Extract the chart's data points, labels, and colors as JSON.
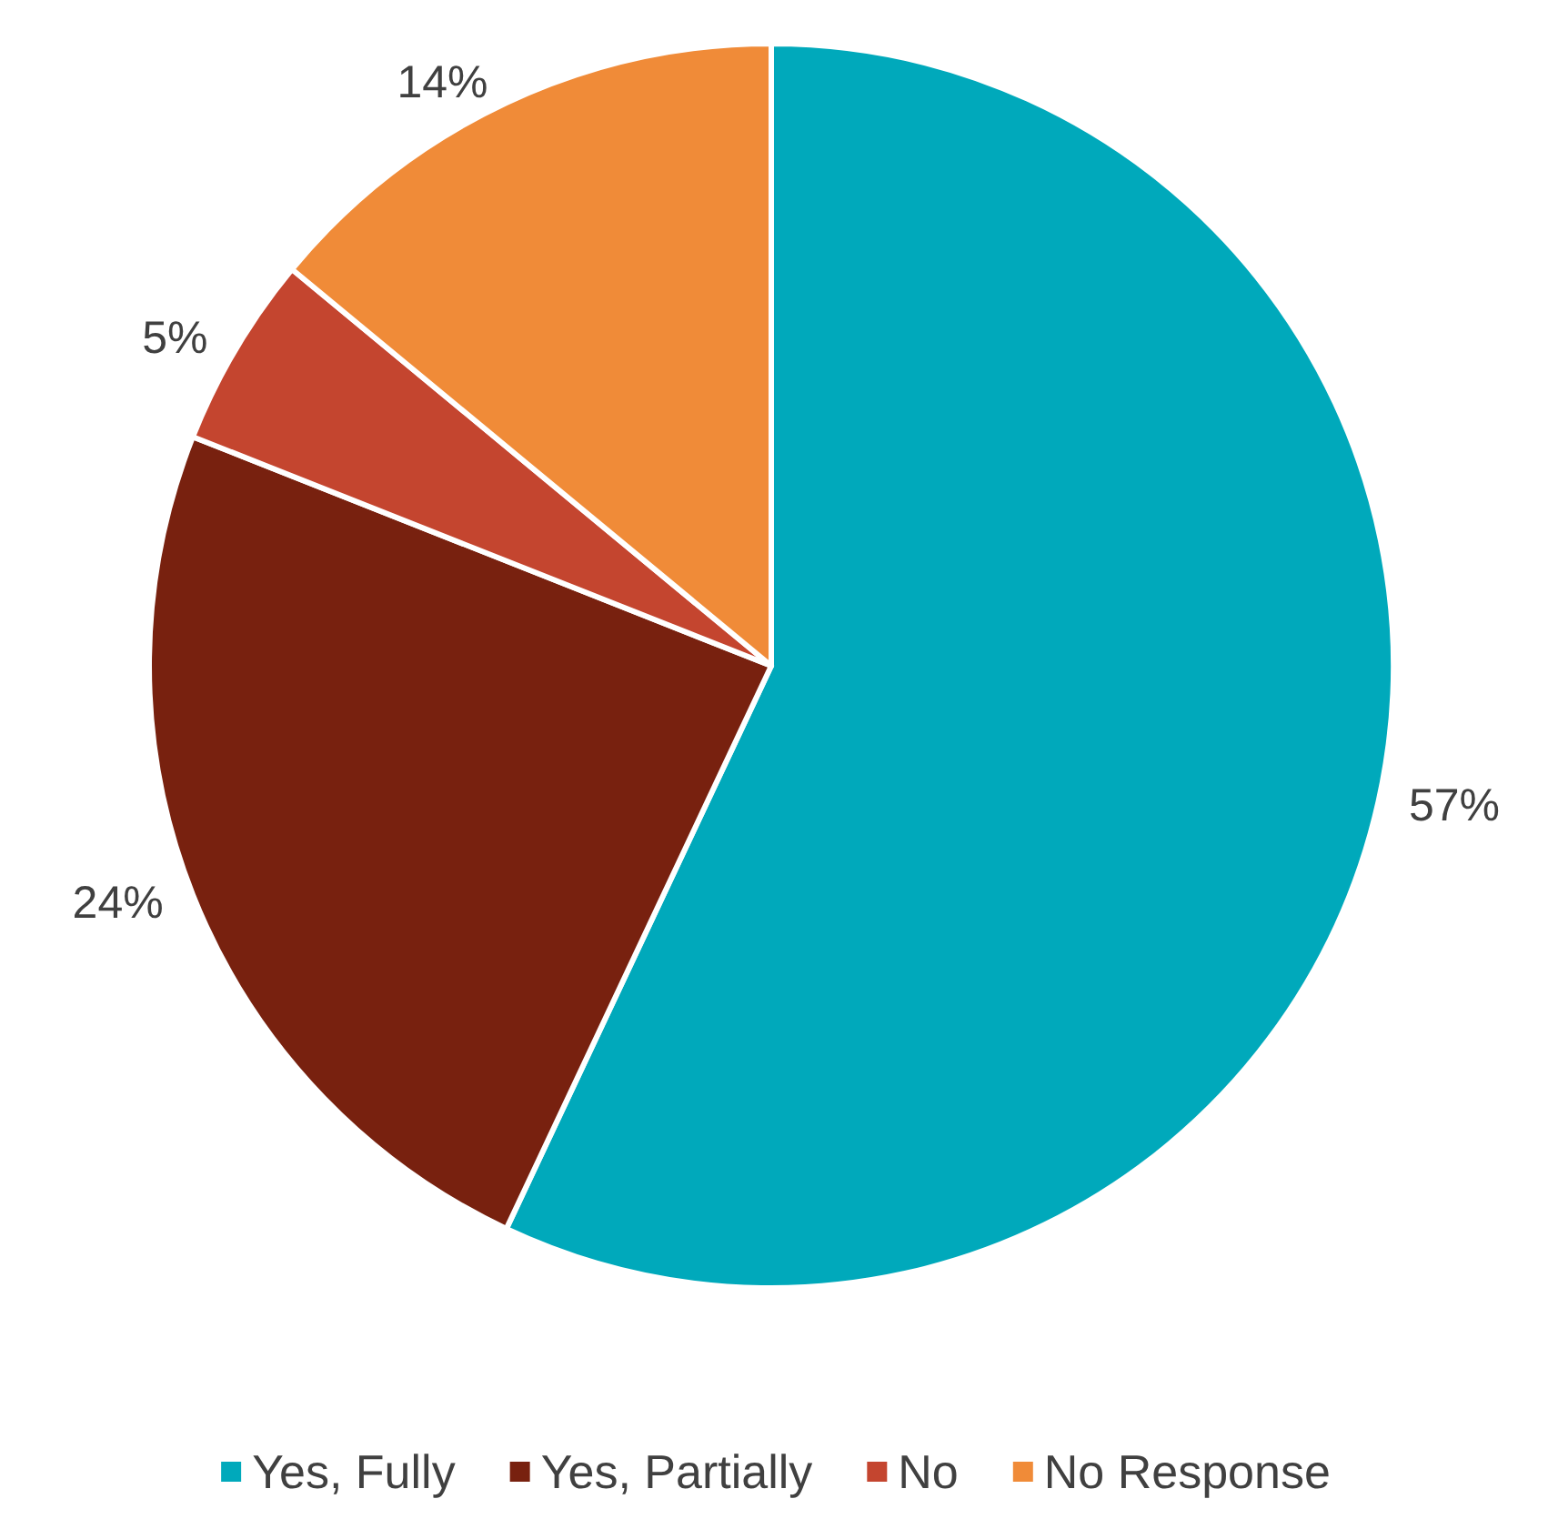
{
  "chart_data": {
    "type": "pie",
    "categories": [
      "Yes, Fully",
      "Yes, Partially",
      "No",
      "No Response"
    ],
    "values": [
      57,
      24,
      5,
      14
    ],
    "value_labels": [
      "57%",
      "24%",
      "5%",
      "14%"
    ],
    "colors": [
      "#00a9bb",
      "#78210f",
      "#c4452f",
      "#f08b38"
    ],
    "legend": "bottom"
  }
}
